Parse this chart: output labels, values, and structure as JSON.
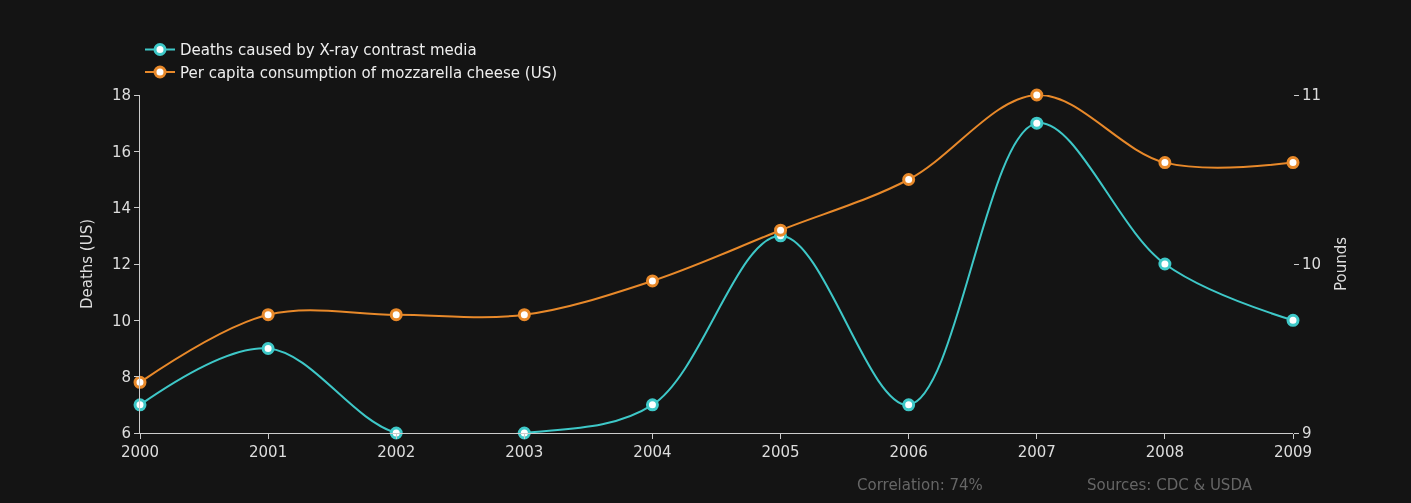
{
  "chart_data": {
    "type": "line",
    "x": [
      2000,
      2001,
      2002,
      2003,
      2004,
      2005,
      2006,
      2007,
      2008,
      2009
    ],
    "series": [
      {
        "name": "Deaths caused by X-ray contrast media",
        "color": "#3ec8c8",
        "values": [
          7,
          9,
          6,
          6,
          7,
          13,
          7,
          17,
          12,
          10
        ]
      },
      {
        "name": "Per capita consumption of mozzarella cheese (US)",
        "color": "#e8892a",
        "axis": "y2",
        "values": [
          9.3,
          9.7,
          9.7,
          9.7,
          9.9,
          10.2,
          10.5,
          11,
          10.6,
          10.6
        ]
      }
    ],
    "ylabel": "Deaths (US)",
    "y2label": "Pounds",
    "xlim": [
      2000,
      2009
    ],
    "xticks": [
      2000,
      2001,
      2002,
      2003,
      2004,
      2005,
      2006,
      2007,
      2008,
      2009
    ],
    "ylim": [
      6,
      18
    ],
    "yticks": [
      6,
      8,
      10,
      12,
      14,
      16,
      18
    ],
    "y2lim": [
      9,
      11
    ],
    "y2ticks": [
      9,
      10,
      11
    ],
    "annotations": [
      "Correlation: 74%",
      "Sources: CDC & USDA"
    ],
    "legend": "top left",
    "marker": "circle",
    "line_style": "solid",
    "grid": false
  }
}
